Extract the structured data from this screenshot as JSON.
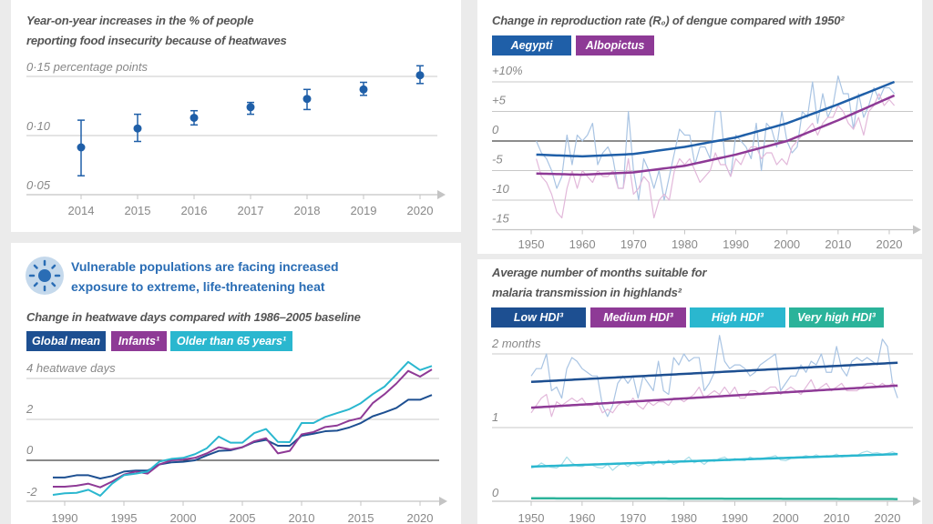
{
  "colors": {
    "background": "#ebebeb",
    "panel": "#ffffff",
    "navy": "#1d4f91",
    "blue": "#1f5fa8",
    "purple": "#8e3a96",
    "cyan": "#2ab7cf",
    "teal": "#2bb39a",
    "raw_blue": "#a9c4e3",
    "raw_pink": "#e2b8da",
    "heading": "#2a6db5"
  },
  "heat_section": {
    "icon": "sun-icon",
    "heading_lines": [
      "Vulnerable populations are facing increased",
      "exposure to extreme, life-threatening heat"
    ]
  },
  "chart_data": [
    {
      "type": "scatter",
      "title_lines": [
        "Year-on-year increases in the % of people",
        "reporting food insecurity because of heatwaves"
      ],
      "ylim": [
        0.05,
        0.15
      ],
      "yticks": [
        {
          "value": 0.15,
          "label": "0·15 percentage points"
        },
        {
          "value": 0.1,
          "label": "0·10"
        },
        {
          "value": 0.05,
          "label": "0·05"
        }
      ],
      "x": [
        2014,
        2015,
        2016,
        2017,
        2018,
        2019,
        2020
      ],
      "xtick_labels": [
        "2014",
        "2015",
        "2016",
        "2017",
        "2018",
        "2019",
        "2020"
      ],
      "y": [
        0.09,
        0.106,
        0.115,
        0.124,
        0.131,
        0.139,
        0.151
      ],
      "y_low": [
        0.066,
        0.095,
        0.109,
        0.118,
        0.122,
        0.134,
        0.144
      ],
      "y_high": [
        0.113,
        0.118,
        0.121,
        0.128,
        0.139,
        0.145,
        0.159
      ],
      "grid": true,
      "series_color": "#1f5fa8"
    },
    {
      "type": "line",
      "title": "Change in reproduction rate (R₀) of dengue compared with 1950²",
      "ylim": [
        -15,
        10
      ],
      "yticks": [
        {
          "value": 10,
          "label": "+10%"
        },
        {
          "value": 5,
          "label": "+5"
        },
        {
          "value": 0,
          "label": "0"
        },
        {
          "value": -5,
          "label": "-5"
        },
        {
          "value": -10,
          "label": "-10"
        },
        {
          "value": -15,
          "label": "-15"
        }
      ],
      "xtick_labels": [
        "1950",
        "1960",
        "1970",
        "1980",
        "1990",
        "2000",
        "2010",
        "2020"
      ],
      "grid": true,
      "legend_position": "top-left",
      "series": [
        {
          "name": "Aegypti",
          "color": "#1f5fa8",
          "raw_color": "#a9c4e3",
          "trend": {
            "x": [
              1951,
              1960,
              1970,
              1980,
              1990,
              2000,
              2010,
              2021
            ],
            "y": [
              -2.3,
              -2.6,
              -2.2,
              -1.0,
              0.6,
              3.0,
              6.2,
              10.0
            ]
          },
          "raw_start": 1951,
          "raw": [
            0,
            -2,
            -3,
            -5,
            -8,
            -6,
            1,
            -4,
            1,
            0,
            1,
            3,
            -4,
            -2,
            -1,
            -3,
            -8,
            -8,
            5,
            -5,
            -10,
            -3,
            -5,
            -8,
            -5,
            -10,
            -6,
            -2,
            2,
            1,
            1,
            -4,
            -1,
            -1,
            -3,
            5,
            5,
            -4,
            -6,
            1,
            0,
            -1,
            -3,
            3,
            -5,
            3,
            2,
            -1,
            5,
            0,
            -2,
            -1,
            5,
            4,
            10,
            3,
            8,
            4,
            6,
            11,
            8,
            8,
            2,
            8,
            4,
            6,
            9,
            7,
            9,
            9,
            8
          ]
        },
        {
          "name": "Albopictus",
          "color": "#8e3a96",
          "raw_color": "#e2b8da",
          "trend": {
            "x": [
              1951,
              1960,
              1970,
              1980,
              1990,
              2000,
              2010,
              2021
            ],
            "y": [
              -5.5,
              -5.7,
              -5.3,
              -4.2,
              -2.3,
              0.0,
              3.5,
              7.7
            ]
          },
          "raw_start": 1951,
          "raw": [
            -3,
            -6,
            -7,
            -9,
            -12,
            -13,
            -8,
            -5,
            -8,
            -5,
            -6,
            -7,
            -5,
            -6,
            -6,
            -5,
            -8,
            -8,
            -3,
            -9,
            -8,
            -6,
            -7,
            -13,
            -10,
            -9,
            -10,
            -5,
            -3,
            -4,
            -3,
            -5,
            -7,
            -6,
            -5,
            -2,
            -4,
            -4,
            -6,
            -3,
            -4,
            -2,
            -1,
            -1,
            -3,
            -2,
            -2,
            -4,
            -3,
            -4,
            -1,
            0,
            1,
            2,
            3,
            1,
            3,
            4,
            4,
            6,
            5,
            3,
            2,
            4,
            1,
            5,
            6,
            8,
            6,
            7,
            6
          ]
        }
      ]
    },
    {
      "type": "line",
      "title": "Change in heatwave days compared with 1986–2005 baseline",
      "ylim": [
        -2,
        4
      ],
      "yticks": [
        {
          "value": 4,
          "label": "4 heatwave days"
        },
        {
          "value": 2,
          "label": "2"
        },
        {
          "value": 0,
          "label": "0"
        },
        {
          "value": -2,
          "label": "-2"
        }
      ],
      "xtick_labels": [
        "1990",
        "1995",
        "2000",
        "2005",
        "2010",
        "2015",
        "2020"
      ],
      "grid": true,
      "legend_position": "top-left",
      "x_start": 1989,
      "series": [
        {
          "name": "Global mean",
          "color": "#1d4f91",
          "y": [
            -0.84,
            -0.84,
            -0.73,
            -0.73,
            -0.89,
            -0.77,
            -0.55,
            -0.5,
            -0.5,
            -0.2,
            -0.1,
            -0.07,
            0.0,
            0.24,
            0.46,
            0.49,
            0.64,
            0.89,
            1.0,
            0.71,
            0.71,
            1.2,
            1.3,
            1.42,
            1.45,
            1.6,
            1.82,
            2.15,
            2.34,
            2.56,
            2.96,
            2.96,
            3.19
          ]
        },
        {
          "name": "Infants¹",
          "color": "#8e3a96",
          "y": [
            -1.29,
            -1.29,
            -1.24,
            -1.14,
            -1.32,
            -1.04,
            -0.7,
            -0.55,
            -0.65,
            -0.2,
            0.0,
            0.04,
            0.12,
            0.34,
            0.64,
            0.53,
            0.64,
            0.93,
            1.08,
            0.34,
            0.46,
            1.27,
            1.38,
            1.63,
            1.7,
            1.93,
            2.07,
            2.79,
            3.23,
            3.75,
            4.37,
            4.09,
            4.44
          ]
        },
        {
          "name": "Older than 65 years¹",
          "color": "#2ab7cf",
          "y": [
            -1.69,
            -1.61,
            -1.59,
            -1.44,
            -1.73,
            -1.14,
            -0.73,
            -0.65,
            -0.55,
            -0.06,
            0.07,
            0.12,
            0.3,
            0.59,
            1.16,
            0.86,
            0.86,
            1.33,
            1.53,
            0.9,
            0.89,
            1.82,
            1.82,
            2.12,
            2.31,
            2.49,
            2.79,
            3.23,
            3.6,
            4.19,
            4.81,
            4.41,
            4.61
          ]
        }
      ]
    },
    {
      "type": "line",
      "title_lines": [
        "Average number of months suitable for",
        "malaria transmission in highlands²"
      ],
      "ylim": [
        0,
        2
      ],
      "yticks": [
        {
          "value": 2,
          "label": "2 months"
        },
        {
          "value": 1,
          "label": "1"
        },
        {
          "value": 0,
          "label": "0"
        }
      ],
      "xtick_labels": [
        "1950",
        "1960",
        "1970",
        "1980",
        "1990",
        "2000",
        "2010",
        "2020"
      ],
      "grid": true,
      "legend_position": "top-left",
      "series": [
        {
          "name": "Low HDI³",
          "color": "#1d4f91",
          "raw_color": "#a9c4e3",
          "trend": {
            "x": [
              1950,
              2022
            ],
            "y": [
              1.62,
              1.88
            ]
          },
          "raw_start": 1950,
          "raw": [
            1.7,
            1.8,
            1.8,
            2.0,
            1.5,
            1.55,
            1.4,
            1.8,
            1.95,
            1.9,
            1.8,
            1.75,
            1.7,
            1.7,
            1.3,
            1.15,
            1.3,
            1.6,
            1.7,
            1.6,
            1.7,
            1.4,
            1.7,
            1.6,
            1.5,
            1.9,
            1.5,
            1.45,
            1.95,
            1.85,
            2.0,
            1.9,
            1.95,
            1.95,
            1.5,
            1.6,
            1.75,
            2.25,
            1.9,
            1.8,
            1.85,
            1.85,
            1.8,
            1.7,
            1.75,
            1.85,
            1.9,
            1.95,
            2.0,
            1.5,
            1.6,
            1.7,
            1.7,
            1.85,
            1.75,
            1.9,
            1.85,
            2.0,
            1.75,
            1.75,
            2.1,
            1.8,
            1.7,
            1.9,
            1.95,
            1.9,
            1.95,
            1.9,
            1.85,
            2.2,
            2.1,
            1.6,
            1.4
          ]
        },
        {
          "name": "Medium HDI³",
          "color": "#8e3a96",
          "raw_color": "#e2b8da",
          "trend": {
            "x": [
              1950,
              2022
            ],
            "y": [
              1.27,
              1.57
            ]
          },
          "raw_start": 1950,
          "raw": [
            1.2,
            1.3,
            1.4,
            1.45,
            1.15,
            1.35,
            1.3,
            1.35,
            1.4,
            1.35,
            1.4,
            1.3,
            1.3,
            1.35,
            1.2,
            1.25,
            1.2,
            1.3,
            1.35,
            1.3,
            1.4,
            1.3,
            1.25,
            1.35,
            1.3,
            1.35,
            1.35,
            1.3,
            1.4,
            1.4,
            1.35,
            1.4,
            1.45,
            1.55,
            1.4,
            1.45,
            1.5,
            1.45,
            1.55,
            1.45,
            1.55,
            1.4,
            1.4,
            1.5,
            1.5,
            1.45,
            1.5,
            1.55,
            1.55,
            1.45,
            1.5,
            1.55,
            1.5,
            1.45,
            1.55,
            1.65,
            1.5,
            1.55,
            1.6,
            1.5,
            1.55,
            1.6,
            1.5,
            1.5,
            1.5,
            1.55,
            1.6,
            1.6,
            1.55,
            1.6,
            1.55,
            1.6,
            1.55
          ]
        },
        {
          "name": "High HDI³",
          "color": "#2ab7cf",
          "raw_color": "#a8dde8",
          "trend": {
            "x": [
              1950,
              2022
            ],
            "y": [
              0.47,
              0.64
            ]
          },
          "raw_start": 1950,
          "raw": [
            0.45,
            0.47,
            0.52,
            0.48,
            0.46,
            0.45,
            0.5,
            0.6,
            0.52,
            0.48,
            0.47,
            0.5,
            0.49,
            0.46,
            0.45,
            0.5,
            0.42,
            0.48,
            0.52,
            0.47,
            0.52,
            0.48,
            0.5,
            0.54,
            0.49,
            0.55,
            0.5,
            0.56,
            0.5,
            0.53,
            0.55,
            0.6,
            0.52,
            0.55,
            0.5,
            0.56,
            0.54,
            0.58,
            0.6,
            0.55,
            0.58,
            0.56,
            0.55,
            0.6,
            0.57,
            0.58,
            0.59,
            0.6,
            0.62,
            0.56,
            0.55,
            0.58,
            0.6,
            0.6,
            0.62,
            0.6,
            0.63,
            0.6,
            0.62,
            0.61,
            0.64,
            0.6,
            0.61,
            0.63,
            0.62,
            0.66,
            0.68,
            0.65,
            0.66,
            0.64,
            0.65,
            0.67,
            0.64
          ]
        },
        {
          "name": "Very high HDI³",
          "color": "#2bb39a",
          "trend": {
            "x": [
              1950,
              2022
            ],
            "y": [
              0.04,
              0.03
            ]
          }
        }
      ]
    }
  ]
}
